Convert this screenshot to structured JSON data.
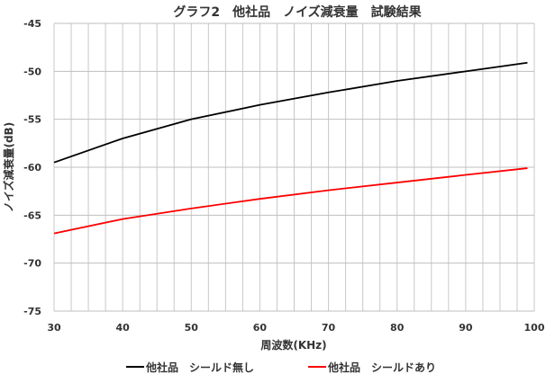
{
  "chart_data": {
    "type": "line",
    "title": "グラフ2　他社品　ノイズ減衰量　試験結果",
    "xlabel": "周波数(KHz)",
    "ylabel": "ノイズ減衰量(dB)",
    "xlim": [
      30,
      100
    ],
    "ylim": [
      -75,
      -45
    ],
    "x_ticks": [
      30,
      40,
      50,
      60,
      70,
      80,
      90,
      100
    ],
    "y_ticks": [
      -45,
      -50,
      -55,
      -60,
      -65,
      -70,
      -75
    ],
    "x_minor_step": 2.5,
    "grid": true,
    "legend_position": "bottom",
    "x": [
      30,
      40,
      50,
      60,
      70,
      80,
      90,
      99
    ],
    "series": [
      {
        "name": "他社品　シールド無し",
        "color": "#000000",
        "values": [
          -59.5,
          -57.0,
          -55.0,
          -53.5,
          -52.2,
          -51.0,
          -50.0,
          -49.1
        ]
      },
      {
        "name": "他社品　シールドあり",
        "color": "#ff0000",
        "values": [
          -66.9,
          -65.4,
          -64.3,
          -63.3,
          -62.4,
          -61.6,
          -60.8,
          -60.1
        ]
      }
    ]
  }
}
